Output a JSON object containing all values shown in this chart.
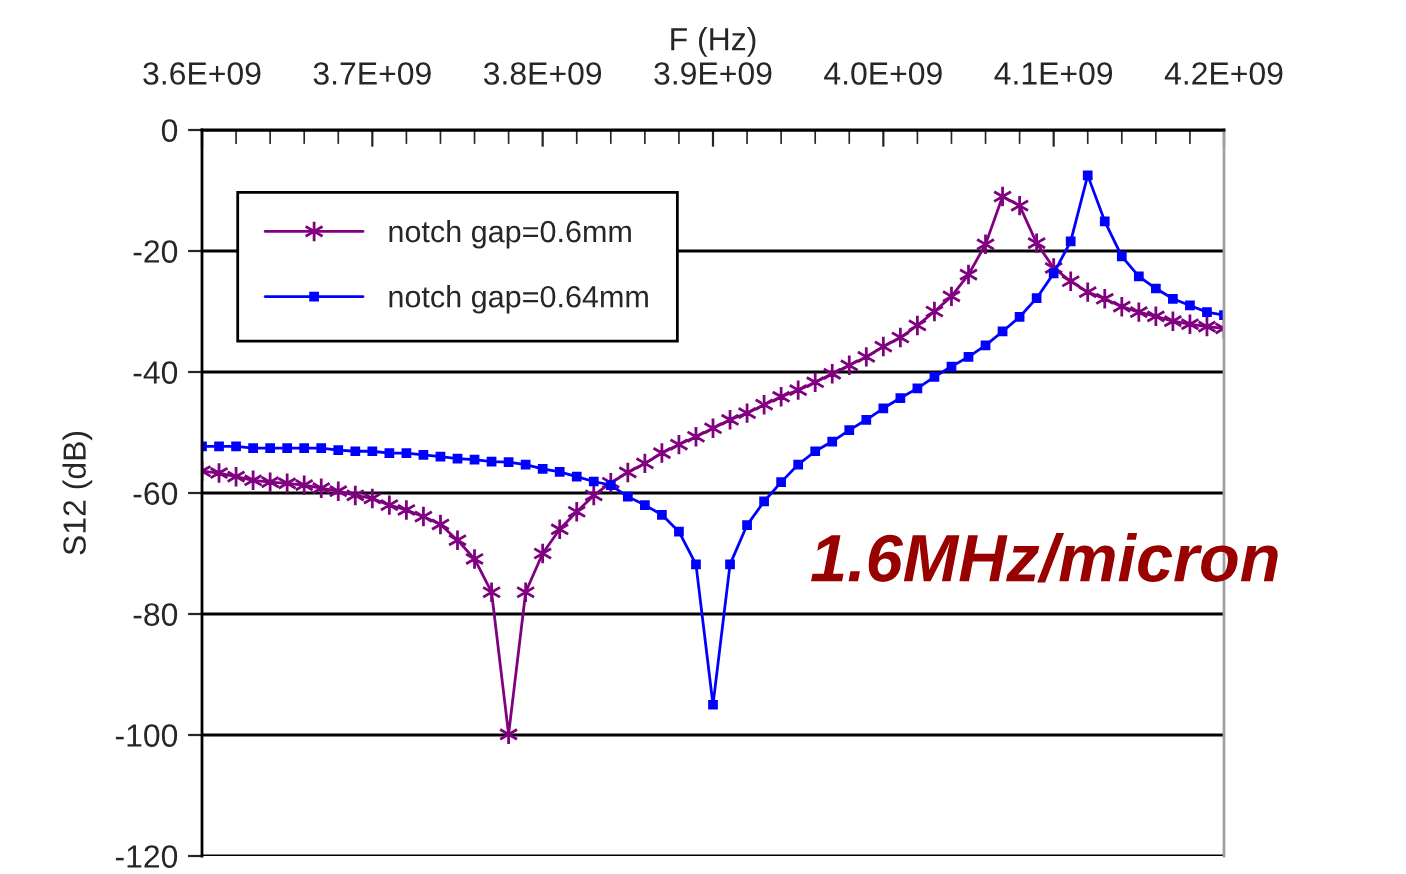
{
  "chart_data": {
    "type": "line",
    "xlabel": "F (Hz)",
    "ylabel": "S12 (dB)",
    "x": [
      3600000000.0,
      3610000000.0,
      3620000000.0,
      3630000000.0,
      3640000000.0,
      3650000000.0,
      3660000000.0,
      3670000000.0,
      3680000000.0,
      3690000000.0,
      3700000000.0,
      3710000000.0,
      3720000000.0,
      3730000000.0,
      3740000000.0,
      3750000000.0,
      3760000000.0,
      3770000000.0,
      3780000000.0,
      3790000000.0,
      3800000000.0,
      3810000000.0,
      3820000000.0,
      3830000000.0,
      3840000000.0,
      3850000000.0,
      3860000000.0,
      3870000000.0,
      3880000000.0,
      3890000000.0,
      3900000000.0,
      3910000000.0,
      3920000000.0,
      3930000000.0,
      3940000000.0,
      3950000000.0,
      3960000000.0,
      3970000000.0,
      3980000000.0,
      3990000000.0,
      4000000000.0,
      4010000000.0,
      4020000000.0,
      4030000000.0,
      4040000000.0,
      4050000000.0,
      4060000000.0,
      4070000000.0,
      4080000000.0,
      4090000000.0,
      4100000000.0,
      4110000000.0,
      4120000000.0,
      4130000000.0,
      4140000000.0,
      4150000000.0,
      4160000000.0,
      4170000000.0,
      4180000000.0,
      4190000000.0,
      4200000000.0
    ],
    "series": [
      {
        "name": "notch gap=0.6mm",
        "color": "#800080",
        "marker": "cross",
        "values": [
          -56.4,
          -56.7,
          -57.3,
          -57.9,
          -58.2,
          -58.4,
          -58.7,
          -59.2,
          -59.7,
          -60.4,
          -60.9,
          -62.0,
          -62.8,
          -63.9,
          -65.2,
          -67.8,
          -70.9,
          -76.4,
          -99.9,
          -76.4,
          -70.0,
          -66.0,
          -63.1,
          -60.4,
          -58.3,
          -56.6,
          -55.1,
          -53.4,
          -52.0,
          -50.7,
          -49.3,
          -47.9,
          -46.8,
          -45.4,
          -44.1,
          -43.0,
          -41.7,
          -40.3,
          -38.9,
          -37.5,
          -35.8,
          -34.3,
          -32.3,
          -30.0,
          -27.5,
          -23.9,
          -18.9,
          -11.0,
          -12.5,
          -18.7,
          -22.8,
          -25.0,
          -26.8,
          -27.9,
          -29.2,
          -30.1,
          -30.8,
          -31.6,
          -32.1,
          -32.5,
          -32.8
        ]
      },
      {
        "name": "notch gap=0.64mm",
        "color": "#0000ff",
        "marker": "square",
        "values": [
          -52.3,
          -52.3,
          -52.3,
          -52.6,
          -52.6,
          -52.6,
          -52.6,
          -52.6,
          -52.9,
          -53.1,
          -53.1,
          -53.4,
          -53.4,
          -53.7,
          -54.0,
          -54.3,
          -54.5,
          -54.8,
          -54.9,
          -55.3,
          -56.0,
          -56.5,
          -57.3,
          -58.1,
          -58.7,
          -60.6,
          -62.0,
          -63.6,
          -66.4,
          -71.8,
          -95.0,
          -71.8,
          -65.3,
          -61.4,
          -58.2,
          -55.3,
          -53.1,
          -51.5,
          -49.6,
          -47.9,
          -46.0,
          -44.3,
          -42.7,
          -40.8,
          -39.1,
          -37.5,
          -35.6,
          -33.3,
          -30.9,
          -27.8,
          -23.7,
          -18.4,
          -7.5,
          -15.1,
          -20.9,
          -24.2,
          -26.2,
          -27.9,
          -29.0,
          -30.1,
          -30.6
        ]
      }
    ],
    "xlim": [
      3600000000.0,
      4200000000.0
    ],
    "xticks": [
      {
        "value": 3600000000.0,
        "label": "3.6E+09"
      },
      {
        "value": 3700000000.0,
        "label": "3.7E+09"
      },
      {
        "value": 3800000000.0,
        "label": "3.8E+09"
      },
      {
        "value": 3900000000.0,
        "label": "3.9E+09"
      },
      {
        "value": 4000000000.0,
        "label": "4.0E+09"
      },
      {
        "value": 4100000000.0,
        "label": "4.1E+09"
      },
      {
        "value": 4200000000.0,
        "label": "4.2E+09"
      }
    ],
    "ylim": [
      -120,
      0
    ],
    "yticks": [
      -120,
      -100,
      -80,
      -60,
      -40,
      -20,
      0
    ],
    "grid": "y",
    "legend": "top left",
    "line_style": "solid",
    "annotations": [
      "1.6MHz/micron"
    ]
  }
}
